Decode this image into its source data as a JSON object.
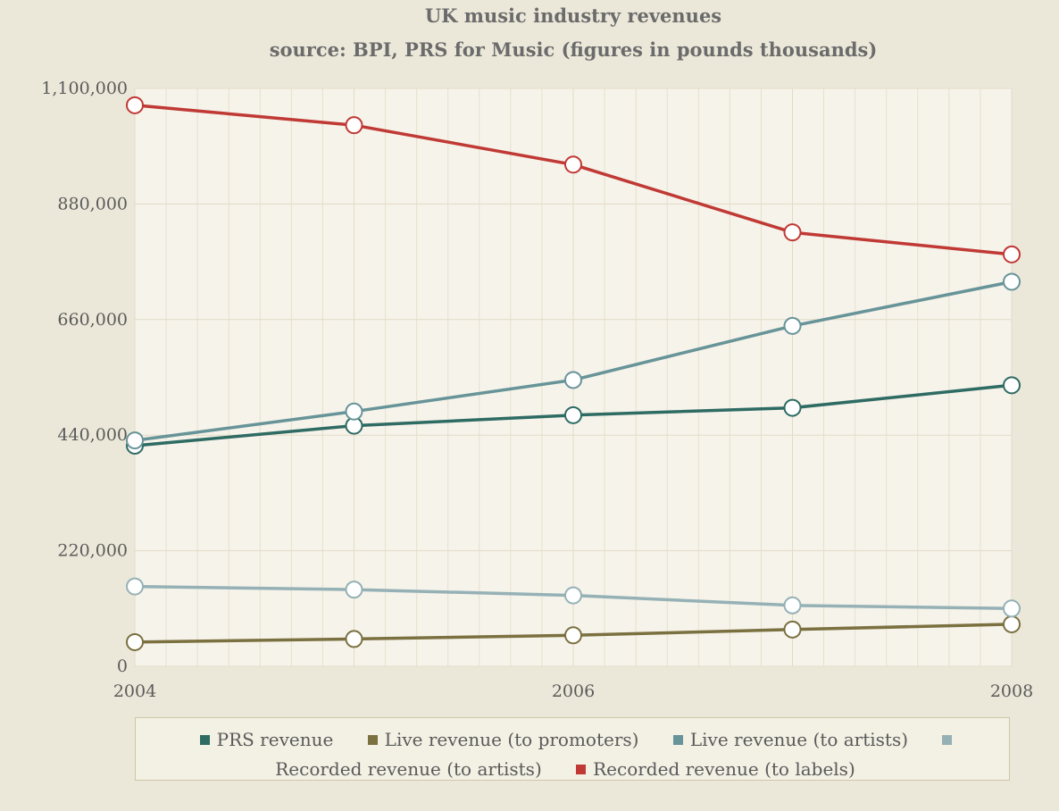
{
  "chart_data": {
    "type": "line",
    "title": "UK music industry revenues",
    "subtitle": "source: BPI, PRS for Music (figures in pounds thousands)",
    "x": [
      2004,
      2005,
      2006,
      2007,
      2008
    ],
    "x_tick_labels": [
      "2004",
      "2006",
      "2008"
    ],
    "x_ticks": [
      2004,
      2006,
      2008
    ],
    "ylim": [
      0,
      1100000
    ],
    "y_ticks": [
      0,
      220000,
      440000,
      660000,
      880000,
      1100000
    ],
    "y_tick_labels": [
      "0",
      "220,000",
      "440,000",
      "660,000",
      "880,000",
      "1,100,000"
    ],
    "grid": true,
    "legend_position": "bottom",
    "series": [
      {
        "name": "PRS revenue",
        "color": "#2e6b63",
        "values": [
          420000,
          458000,
          478000,
          492000,
          535000
        ]
      },
      {
        "name": "Live revenue (to promoters)",
        "color": "#7a7040",
        "values": [
          46000,
          52000,
          59000,
          70000,
          80000
        ]
      },
      {
        "name": "Live revenue (to artists)",
        "color": "#679498",
        "values": [
          430000,
          485000,
          545000,
          648000,
          732000
        ]
      },
      {
        "name": "Recorded revenue (to artists)",
        "color": "#95b1b6",
        "values": [
          152000,
          146000,
          135000,
          116000,
          110000
        ]
      },
      {
        "name": "Recorded revenue (to labels)",
        "color": "#c03935",
        "values": [
          1068000,
          1030000,
          955000,
          826000,
          784000
        ]
      }
    ]
  }
}
